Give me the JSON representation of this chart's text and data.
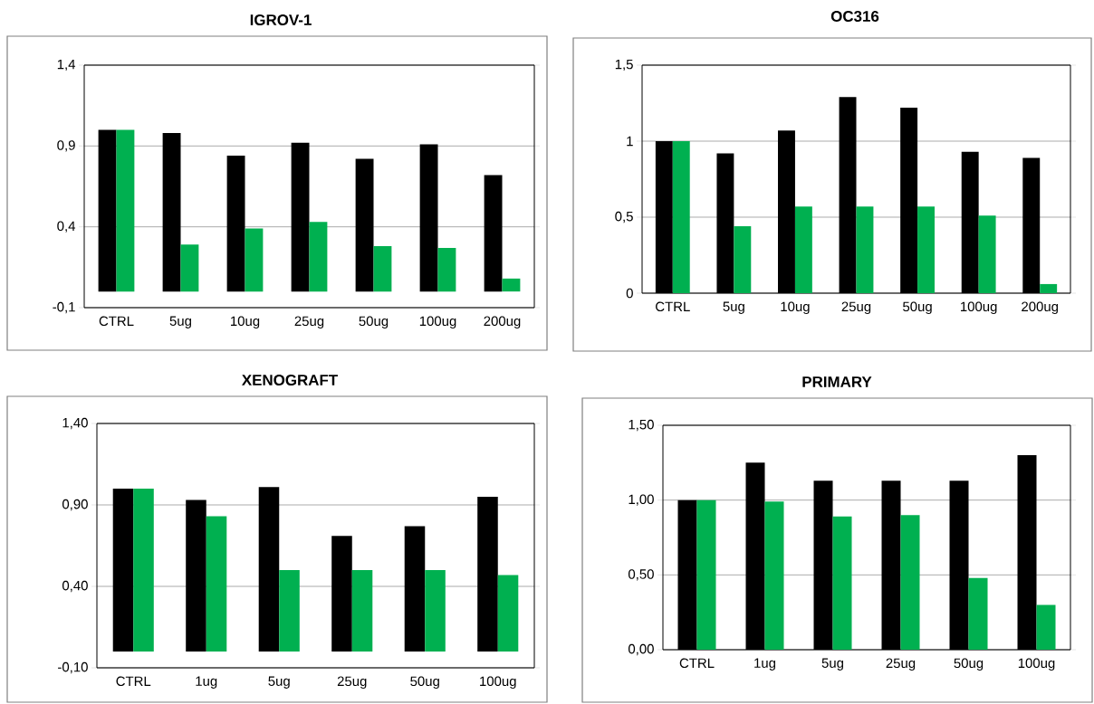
{
  "chart_data": [
    {
      "type": "bar",
      "title": "IGROV-1",
      "categories": [
        "CTRL",
        "5ug",
        "10ug",
        "25ug",
        "50ug",
        "100ug",
        "200ug"
      ],
      "series": [
        {
          "color": "#000000",
          "values": [
            1.0,
            0.98,
            0.84,
            0.92,
            0.82,
            0.91,
            0.72
          ]
        },
        {
          "color": "#00b050",
          "values": [
            1.0,
            0.29,
            0.39,
            0.43,
            0.28,
            0.27,
            0.08
          ]
        }
      ],
      "ylim": [
        -0.1,
        1.4
      ],
      "yticks": [
        {
          "value": -0.1,
          "label": "-0,1"
        },
        {
          "value": 0.4,
          "label": "0,4"
        },
        {
          "value": 0.9,
          "label": "0,9"
        },
        {
          "value": 1.4,
          "label": "1,4"
        }
      ],
      "grid": "y"
    },
    {
      "type": "bar",
      "title": "OC316",
      "categories": [
        "CTRL",
        "5ug",
        "10ug",
        "25ug",
        "50ug",
        "100ug",
        "200ug"
      ],
      "series": [
        {
          "color": "#000000",
          "values": [
            1.0,
            0.92,
            1.07,
            1.29,
            1.22,
            0.93,
            0.89
          ]
        },
        {
          "color": "#00b050",
          "values": [
            1.0,
            0.44,
            0.57,
            0.57,
            0.57,
            0.51,
            0.06
          ]
        }
      ],
      "ylim": [
        0,
        1.5
      ],
      "yticks": [
        0,
        {
          "value": 0.5,
          "label": "0,5"
        },
        1,
        {
          "value": 1.5,
          "label": "1,5"
        }
      ],
      "grid": "y"
    },
    {
      "type": "bar",
      "title": "XENOGRAFT",
      "categories": [
        "CTRL",
        "1ug",
        "5ug",
        "25ug",
        "50ug",
        "100ug"
      ],
      "series": [
        {
          "color": "#000000",
          "values": [
            1.0,
            0.93,
            1.01,
            0.71,
            0.77,
            0.95
          ]
        },
        {
          "color": "#00b050",
          "values": [
            1.0,
            0.83,
            0.5,
            0.5,
            0.5,
            0.47
          ]
        }
      ],
      "ylim": [
        -0.1,
        1.4
      ],
      "yticks": [
        {
          "value": -0.1,
          "label": "-0,10"
        },
        {
          "value": 0.4,
          "label": "0,40"
        },
        {
          "value": 0.9,
          "label": "0,90"
        },
        {
          "value": 1.4,
          "label": "1,40"
        }
      ],
      "grid": "y"
    },
    {
      "type": "bar",
      "title": "PRIMARY",
      "categories": [
        "CTRL",
        "1ug",
        "5ug",
        "25ug",
        "50ug",
        "100ug"
      ],
      "series": [
        {
          "color": "#000000",
          "values": [
            1.0,
            1.25,
            1.13,
            1.13,
            1.13,
            1.3
          ]
        },
        {
          "color": "#00b050",
          "values": [
            1.0,
            0.99,
            0.89,
            0.9,
            0.48,
            0.3
          ]
        }
      ],
      "ylim": [
        0,
        1.5
      ],
      "yticks": [
        {
          "value": 0,
          "label": "0,00"
        },
        {
          "value": 0.5,
          "label": "0,50"
        },
        {
          "value": 1.0,
          "label": "1,00"
        },
        {
          "value": 1.5,
          "label": "1,50"
        }
      ],
      "grid": "y"
    }
  ]
}
